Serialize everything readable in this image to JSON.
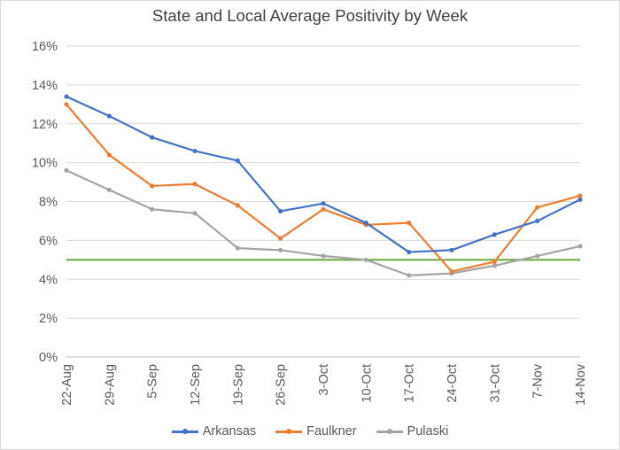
{
  "chart_data": {
    "type": "line",
    "title": "State and Local Average Positivity by Week",
    "categories": [
      "22-Aug",
      "29-Aug",
      "5-Sep",
      "12-Sep",
      "19-Sep",
      "26-Sep",
      "3-Oct",
      "10-Oct",
      "17-Oct",
      "24-Oct",
      "31-Oct",
      "7-Nov",
      "14-Nov"
    ],
    "ylim": [
      0,
      16
    ],
    "yticks": [
      "0%",
      "2%",
      "4%",
      "6%",
      "8%",
      "10%",
      "12%",
      "14%",
      "16%"
    ],
    "grid": true,
    "legend_position": "bottom",
    "series": [
      {
        "name": "Arkansas",
        "color": "#4472c4",
        "values": [
          13.4,
          12.4,
          11.3,
          10.6,
          10.1,
          7.5,
          7.9,
          6.9,
          5.4,
          5.5,
          6.3,
          7.0,
          8.1
        ]
      },
      {
        "name": "Faulkner",
        "color": "#ed7d31",
        "values": [
          13.0,
          10.4,
          8.8,
          8.9,
          7.8,
          6.1,
          7.6,
          6.8,
          6.9,
          4.4,
          4.9,
          7.7,
          8.3
        ]
      },
      {
        "name": "Pulaski",
        "color": "#a5a5a5",
        "values": [
          9.6,
          8.6,
          7.6,
          7.4,
          5.6,
          5.5,
          5.2,
          5.0,
          4.2,
          4.3,
          4.7,
          5.2,
          5.7
        ]
      }
    ],
    "reference_line": {
      "value": 5,
      "color": "#70ad47"
    }
  }
}
